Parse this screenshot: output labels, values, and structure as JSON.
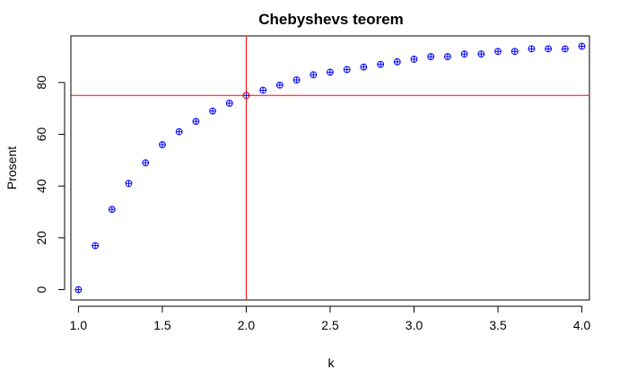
{
  "chart_data": {
    "type": "scatter",
    "title": "Chebyshevs teorem",
    "xlabel": "k",
    "ylabel": "Prosent",
    "xlim": [
      0.955,
      4.045
    ],
    "ylim": [
      -4,
      98
    ],
    "x_ticks": [
      "1.0",
      "1.5",
      "2.0",
      "2.5",
      "3.0",
      "3.5",
      "4.0"
    ],
    "y_ticks": [
      "0",
      "20",
      "40",
      "60",
      "80"
    ],
    "grid": false,
    "legend": "none",
    "point_color": "#0000ff",
    "point_marker": "circle-plus",
    "ref_line_color": "#ff0000",
    "ref_lines": {
      "vertical_x": 2.0,
      "horizontal_y": 75
    },
    "highlight_point": {
      "x": 2.0,
      "y": 75,
      "color": "#ff0000"
    },
    "series": [
      {
        "x": [
          1.0,
          1.1,
          1.2,
          1.3,
          1.4,
          1.5,
          1.6,
          1.7,
          1.8,
          1.9,
          2.0,
          2.1,
          2.2,
          2.3,
          2.4,
          2.5,
          2.6,
          2.7,
          2.8,
          2.9,
          3.0,
          3.1,
          3.2,
          3.3,
          3.4,
          3.5,
          3.6,
          3.7,
          3.8,
          3.9,
          4.0
        ],
        "values": [
          0,
          17,
          31,
          41,
          49,
          56,
          61,
          65,
          69,
          72,
          75,
          77,
          79,
          81,
          83,
          84,
          85,
          86,
          87,
          88,
          89,
          90,
          90,
          91,
          91,
          92,
          92,
          93,
          93,
          93,
          94
        ]
      }
    ]
  }
}
